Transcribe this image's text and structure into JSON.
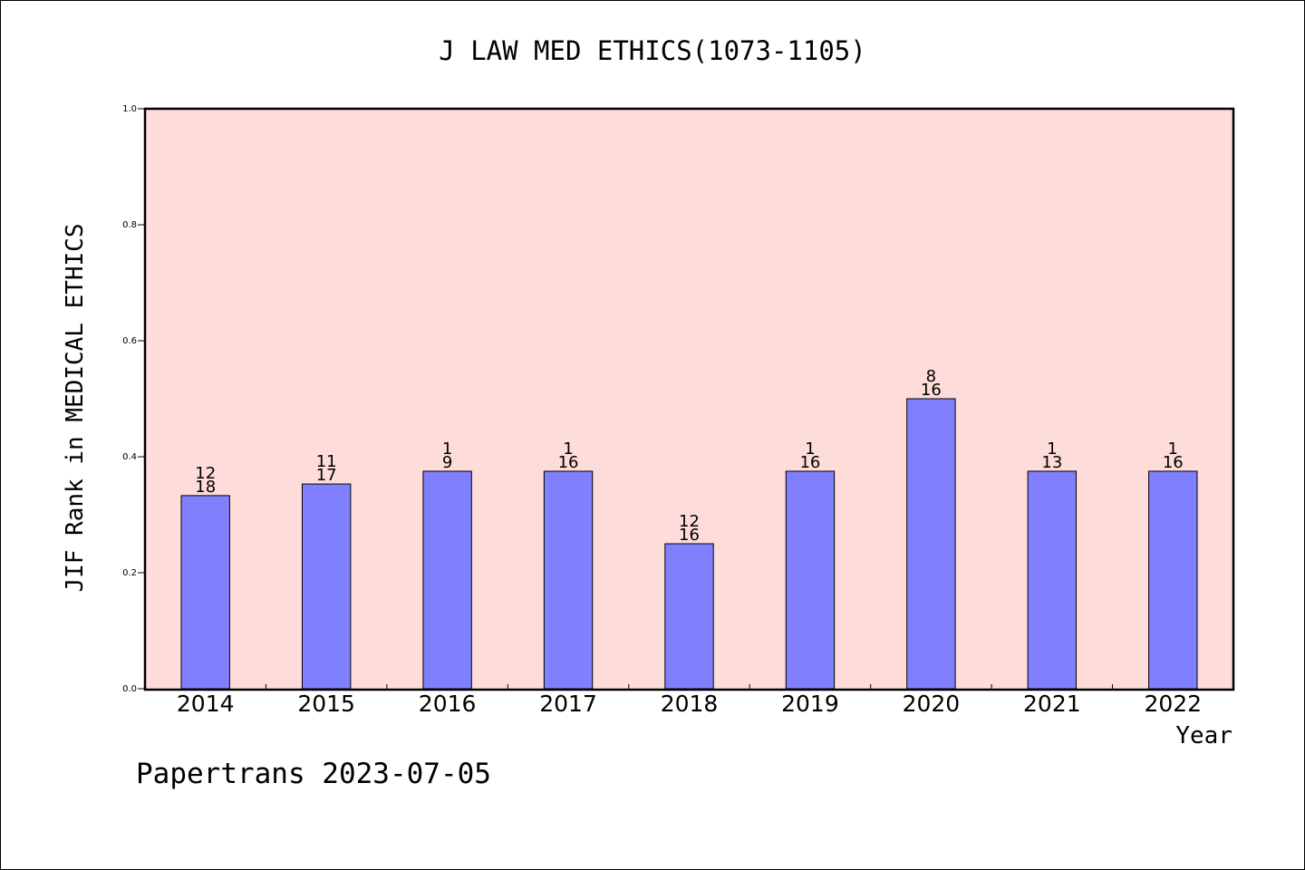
{
  "chart_data": {
    "type": "bar",
    "title": "J LAW MED ETHICS(1073-1105)",
    "xlabel": "Year",
    "ylabel": "JIF Rank in MEDICAL ETHICS",
    "ylim": [
      0,
      1.0
    ],
    "yticks": [
      "0.0",
      "0.2",
      "0.4",
      "0.6",
      "0.8",
      "1.0"
    ],
    "categories": [
      "2014",
      "2015",
      "2016",
      "2017",
      "2018",
      "2019",
      "2020",
      "2021",
      "2022"
    ],
    "values": [
      0.333,
      0.353,
      0.375,
      0.375,
      0.25,
      0.375,
      0.5,
      0.375,
      0.375
    ],
    "labels_top": [
      "12",
      "11",
      "1",
      "1",
      "12",
      "1",
      "8",
      "1",
      "1"
    ],
    "labels_bottom": [
      "18",
      "17",
      "9",
      "16",
      "16",
      "16",
      "16",
      "13",
      "16"
    ],
    "grid": false,
    "colors": {
      "plot_bg": "#fddcd9",
      "bar": "#8080ff",
      "border": "#000000"
    }
  },
  "footer": "Papertrans 2023-07-05"
}
